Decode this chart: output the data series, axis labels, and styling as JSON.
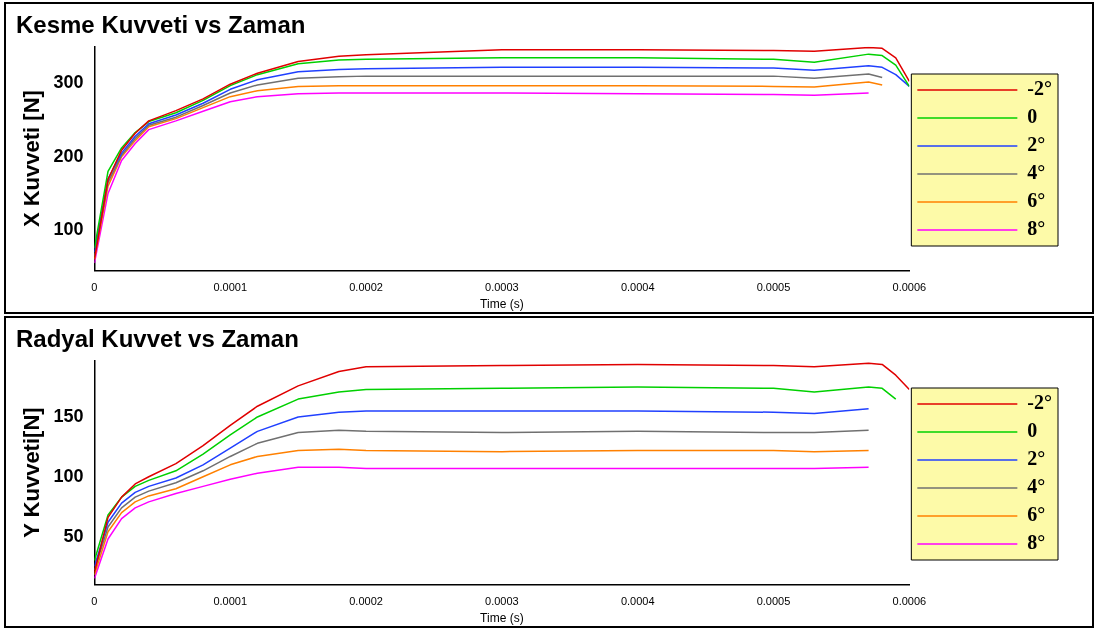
{
  "chart_data": [
    {
      "type": "line",
      "title": "Kesme Kuvveti vs Zaman",
      "xlabel": "Time (s)",
      "ylabel": "X Kuvveti [N]",
      "x": [
        0,
        1e-05,
        2e-05,
        3e-05,
        4e-05,
        6e-05,
        8e-05,
        0.0001,
        0.00012,
        0.00015,
        0.00018,
        0.0002,
        0.0003,
        0.0004,
        0.0005,
        0.00053,
        0.00057,
        0.00058,
        0.00059,
        0.0006
      ],
      "xlim": [
        0,
        0.0006
      ],
      "xticks": [
        0,
        0.0001,
        0.0002,
        0.0003,
        0.0004,
        0.0005,
        0.0006
      ],
      "ylim": [
        45,
        350
      ],
      "yticks": [
        100,
        200,
        300
      ],
      "grid": false,
      "legend": "right",
      "marker": "none",
      "line_style": "solid",
      "series": [
        {
          "name": "-2°",
          "color": "#e00000",
          "values": [
            60,
            169,
            209,
            232,
            249,
            263,
            279,
            299,
            314,
            330,
            337,
            339,
            346,
            346,
            345,
            344,
            349,
            348,
            335,
            303
          ]
        },
        {
          "name": "0",
          "color": "#00d000",
          "values": [
            75,
            180,
            212,
            233,
            248,
            260,
            277,
            297,
            312,
            327,
            332,
            333,
            335,
            335,
            333,
            329,
            340,
            338,
            325,
            296
          ]
        },
        {
          "name": "2°",
          "color": "#2040ff",
          "values": [
            70,
            170,
            205,
            228,
            245,
            257,
            273,
            292,
            305,
            316,
            319,
            320,
            322,
            322,
            321,
            318,
            324,
            322,
            312,
            296
          ]
        },
        {
          "name": "4°",
          "color": "#707070",
          "values": [
            65,
            165,
            202,
            225,
            243,
            254,
            270,
            287,
            298,
            307,
            309,
            310,
            310,
            310,
            310,
            307,
            313,
            308,
            null,
            null
          ]
        },
        {
          "name": "6°",
          "color": "#ff8000",
          "values": [
            60,
            160,
            200,
            222,
            241,
            252,
            267,
            282,
            290,
            296,
            297,
            297,
            297,
            297,
            296,
            295,
            302,
            298,
            null,
            null
          ]
        },
        {
          "name": "8°",
          "color": "#ff00ff",
          "values": [
            55,
            150,
            195,
            218,
            237,
            249,
            262,
            275,
            282,
            286,
            287,
            287,
            287,
            286,
            285,
            284,
            287,
            null,
            null,
            null
          ]
        }
      ]
    },
    {
      "type": "line",
      "title": "Radyal Kuvvet vs Zaman",
      "xlabel": "Time (s)",
      "ylabel": "Y Kuvveti[N]",
      "x": [
        0,
        1e-05,
        2e-05,
        3e-05,
        4e-05,
        6e-05,
        8e-05,
        0.0001,
        0.00012,
        0.00015,
        0.00018,
        0.0002,
        0.0003,
        0.0004,
        0.0005,
        0.00053,
        0.00057,
        0.00058,
        0.00059,
        0.0006
      ],
      "xlim": [
        0,
        0.0006
      ],
      "xticks": [
        0,
        0.0001,
        0.0002,
        0.0003,
        0.0004,
        0.0005,
        0.0006
      ],
      "ylim": [
        10,
        197
      ],
      "yticks": [
        50,
        100,
        150
      ],
      "grid": false,
      "legend": "right",
      "marker": "none",
      "line_style": "solid",
      "series": [
        {
          "name": "-2°",
          "color": "#e00000",
          "values": [
            20,
            66,
            83,
            94,
            100,
            111,
            126,
            143,
            159,
            176,
            188,
            192,
            193,
            194,
            193,
            192,
            195,
            194,
            185,
            173
          ]
        },
        {
          "name": "0",
          "color": "#00d000",
          "values": [
            30,
            68,
            83,
            92,
            97,
            105,
            119,
            135,
            150,
            165,
            171,
            173,
            174,
            175,
            174,
            171,
            175,
            174,
            165,
            null
          ]
        },
        {
          "name": "2°",
          "color": "#2040ff",
          "values": [
            25,
            62,
            78,
            87,
            92,
            99,
            110,
            124,
            138,
            150,
            154,
            155,
            155,
            155,
            154,
            153,
            157,
            null,
            null,
            null
          ]
        },
        {
          "name": "4°",
          "color": "#707070",
          "values": [
            22,
            58,
            74,
            83,
            88,
            95,
            105,
            117,
            128,
            137,
            139,
            138,
            137,
            138,
            137,
            137,
            139,
            null,
            null,
            null
          ]
        },
        {
          "name": "6°",
          "color": "#ff8000",
          "values": [
            18,
            54,
            70,
            79,
            84,
            90,
            100,
            110,
            117,
            122,
            123,
            122,
            121,
            122,
            122,
            121,
            122,
            null,
            null,
            null
          ]
        },
        {
          "name": "8°",
          "color": "#ff00ff",
          "values": [
            15,
            48,
            65,
            74,
            79,
            86,
            92,
            98,
            103,
            108,
            108,
            107,
            107,
            107,
            107,
            107,
            108,
            null,
            null,
            null
          ]
        }
      ]
    }
  ]
}
